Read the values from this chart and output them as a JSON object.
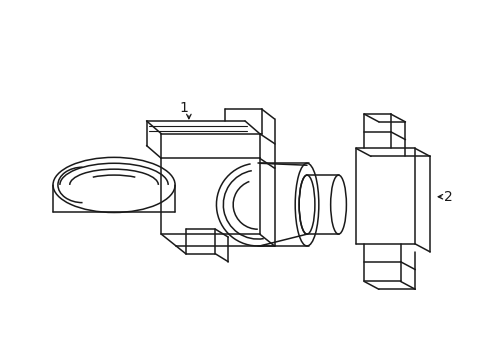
{
  "background_color": "#ffffff",
  "line_color": "#1a1a1a",
  "line_width": 1.1,
  "figure_width": 4.89,
  "figure_height": 3.6,
  "dpi": 100,
  "label_1": "1",
  "label_2": "2"
}
